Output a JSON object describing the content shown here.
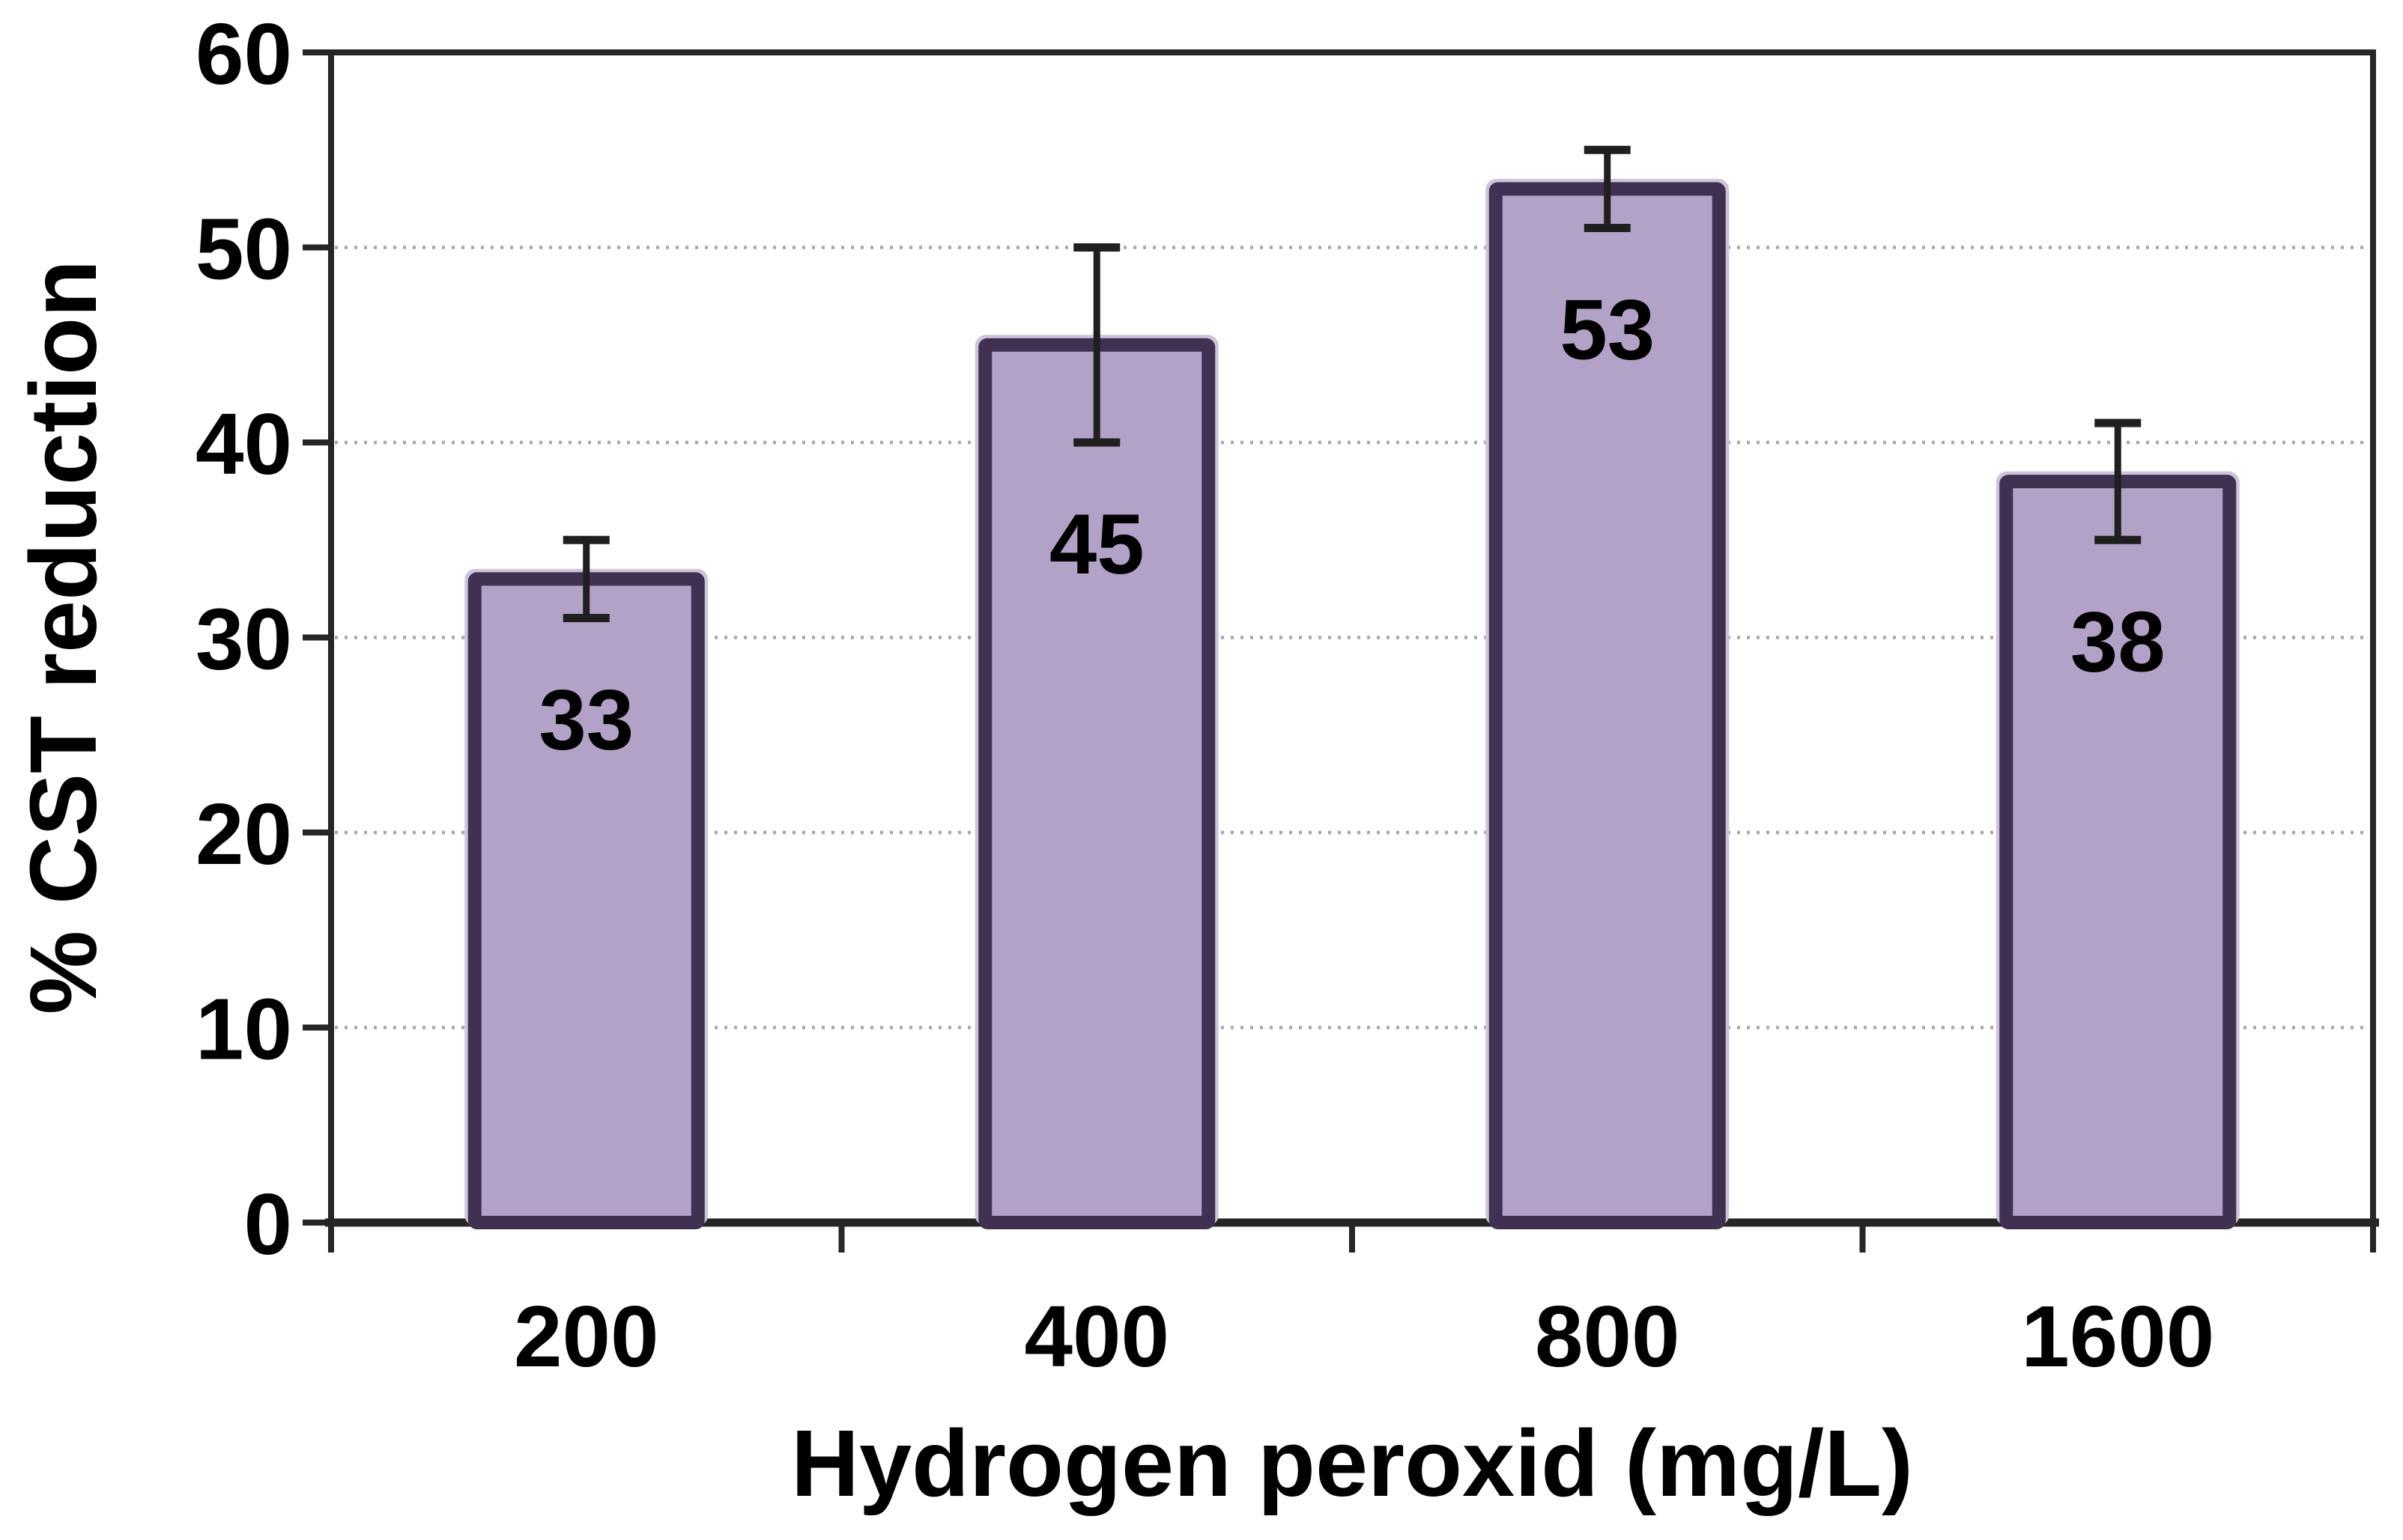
{
  "chart_data": {
    "type": "bar",
    "title": "",
    "xlabel": "Hydrogen peroxid (mg/L)",
    "ylabel": "% CST reduction",
    "categories": [
      "200",
      "400",
      "800",
      "1600"
    ],
    "values": [
      33,
      45,
      53,
      38
    ],
    "data_labels": [
      "33",
      "45",
      "53",
      "38"
    ],
    "error_bars": [
      {
        "low": 31,
        "high": 35
      },
      {
        "low": 40,
        "high": 50
      },
      {
        "low": 51,
        "high": 55
      },
      {
        "low": 35,
        "high": 41
      }
    ],
    "yticks": [
      0,
      10,
      20,
      30,
      40,
      50,
      60
    ],
    "ylim": [
      0,
      60
    ],
    "grid": {
      "horizontal": true,
      "style": "dotted"
    },
    "legend": "none",
    "colors": {
      "bar_fill": "#b3a2c7",
      "bar_border": "#403152",
      "bar_halo": "#cdc4db",
      "error_bar": "#1f1f1f",
      "gridline": "#a8a8a8",
      "axis": "#262626",
      "text": "#000000",
      "background": "#ffffff"
    }
  }
}
